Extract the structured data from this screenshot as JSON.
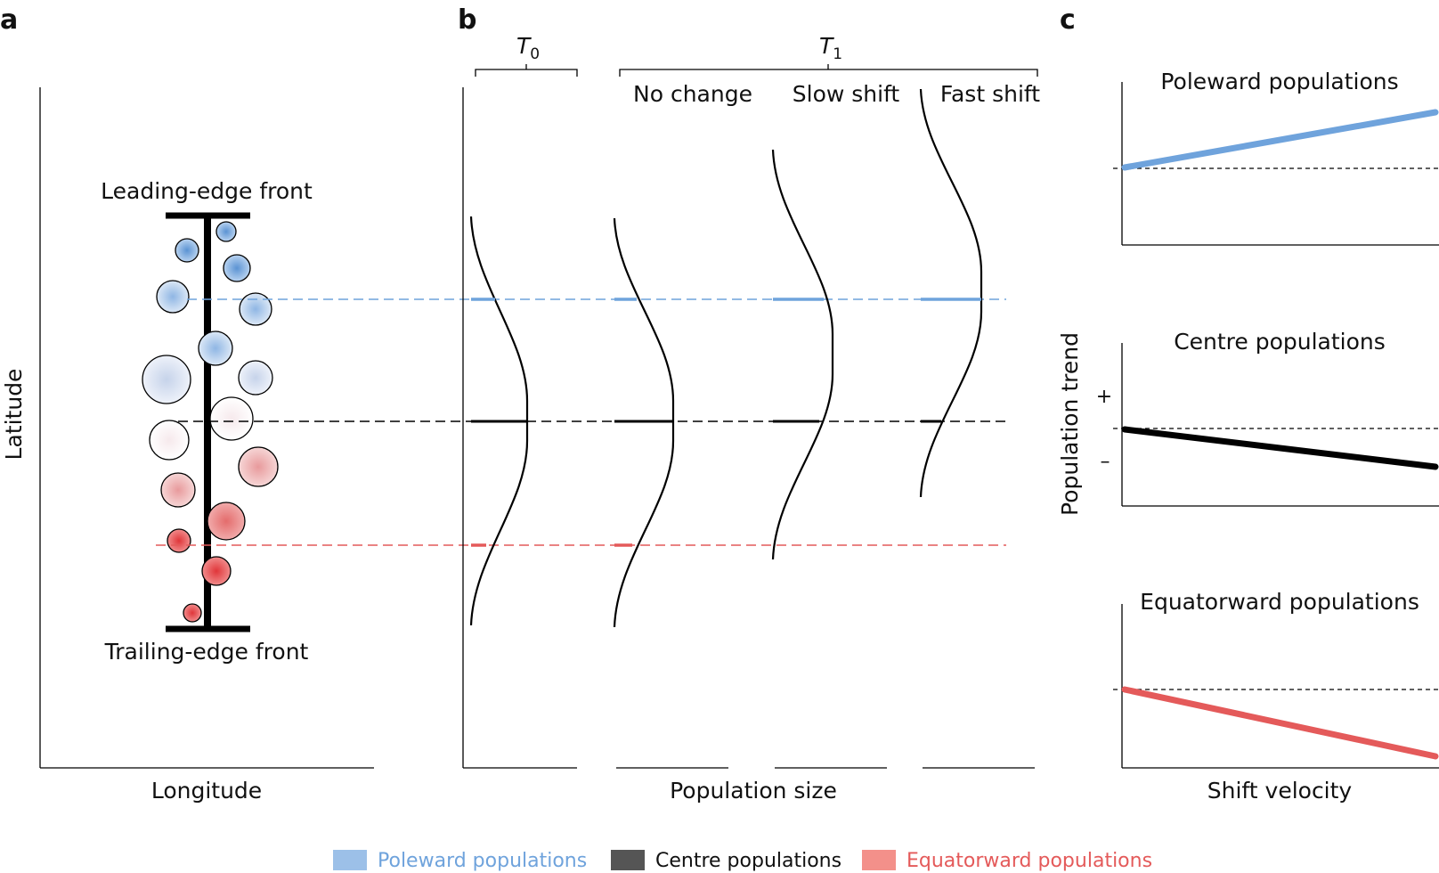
{
  "panels": {
    "a": "a",
    "b": "b",
    "c": "c"
  },
  "colors": {
    "poleward": "#6fa3dc",
    "poleward_fill": "#9cc0e8",
    "centre": "#4a4a4a",
    "equatorward": "#e45a5a",
    "equatorward_fill": "#f3908a",
    "ink": "#000000"
  },
  "panel_a": {
    "leading_edge": "Leading-edge front",
    "trailing_edge": "Trailing-edge front",
    "x_label": "Longitude",
    "y_label": "Latitude"
  },
  "panel_b": {
    "t0": "T",
    "t0_sub": "0",
    "t1": "T",
    "t1_sub": "1",
    "scenarios": [
      "No change",
      "Slow shift",
      "Fast shift"
    ],
    "x_label": "Population size"
  },
  "panel_c": {
    "plots": [
      {
        "title": "Poleward populations",
        "trend": "increase",
        "color": "#6fa3dc"
      },
      {
        "title": "Centre populations",
        "trend": "decrease",
        "color": "#000000"
      },
      {
        "title": "Equatorward populations",
        "trend": "steep decrease",
        "color": "#e45a5a"
      }
    ],
    "y_label": "Population trend",
    "plus": "+",
    "minus": "–",
    "x_label": "Shift velocity"
  },
  "legend": [
    {
      "label": "Poleward populations",
      "color": "#9cc0e8",
      "text_color": "#6fa3dc"
    },
    {
      "label": "Centre populations",
      "color": "#555555",
      "text_color": "#111111"
    },
    {
      "label": "Equatorward populations",
      "color": "#f3908a",
      "text_color": "#e45a5a"
    }
  ]
}
